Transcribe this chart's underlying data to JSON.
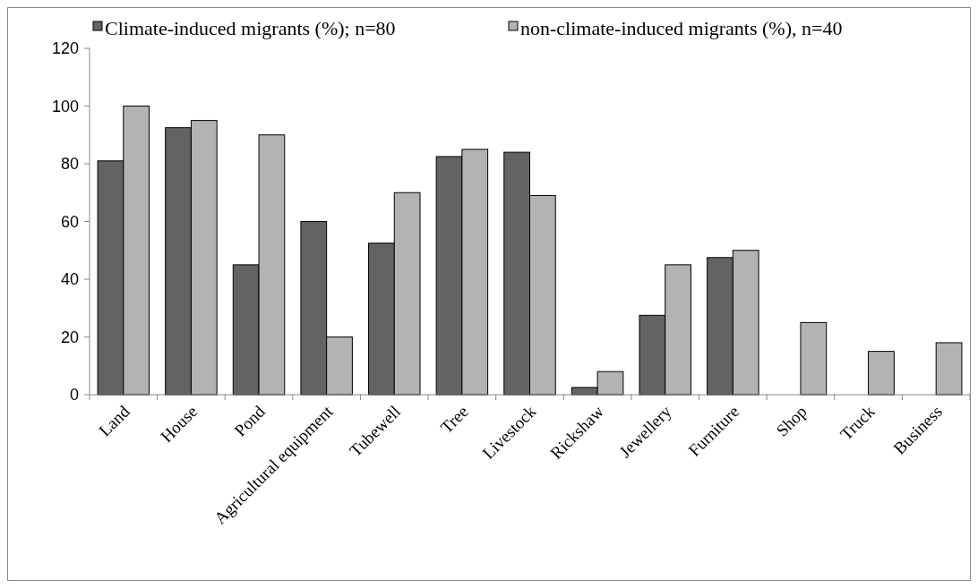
{
  "chart_data": {
    "type": "bar",
    "categories": [
      "Land",
      "House",
      "Pond",
      "Agricultural equipment",
      "Tubewell",
      "Tree",
      "Livestock",
      "Rickshaw",
      "Jewellery",
      "Furniture",
      "Shop",
      "Truck",
      "Business"
    ],
    "series": [
      {
        "name": "Climate-induced migrants (%); n=80",
        "color": "#636363",
        "values": [
          81,
          92.5,
          45,
          60,
          52.5,
          82.5,
          84,
          2.5,
          27.5,
          47.5,
          0,
          0,
          0
        ]
      },
      {
        "name": "non-climate-induced migrants (%), n=40",
        "color": "#b3b3b3",
        "values": [
          100,
          95,
          90,
          20,
          70,
          85,
          69,
          8,
          45,
          50,
          25,
          15,
          18
        ]
      }
    ],
    "ylim": [
      0,
      120
    ],
    "yticks": [
      0,
      20,
      40,
      60,
      80,
      100,
      120
    ],
    "grid": false,
    "legend": "top"
  }
}
